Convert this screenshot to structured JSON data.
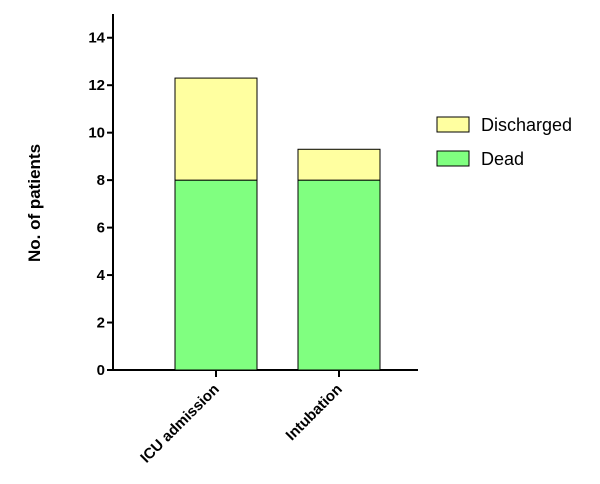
{
  "chart_data": {
    "type": "bar",
    "stacked": true,
    "categories": [
      "ICU admission",
      "Intubation"
    ],
    "series": [
      {
        "name": "Dead",
        "values": [
          8,
          8
        ],
        "color": "#80ff80"
      },
      {
        "name": "Discharged",
        "values": [
          4.3,
          1.3
        ],
        "color": "#ffffa0"
      }
    ],
    "ylabel": "No. of patients",
    "xlabel": "",
    "ylim": [
      0,
      15
    ],
    "yticks": [
      "0",
      "2",
      "4",
      "6",
      "8",
      "10",
      "12",
      "14"
    ],
    "legend": [
      "Discharged",
      "Dead"
    ],
    "legend_position": "right",
    "grid": false
  }
}
